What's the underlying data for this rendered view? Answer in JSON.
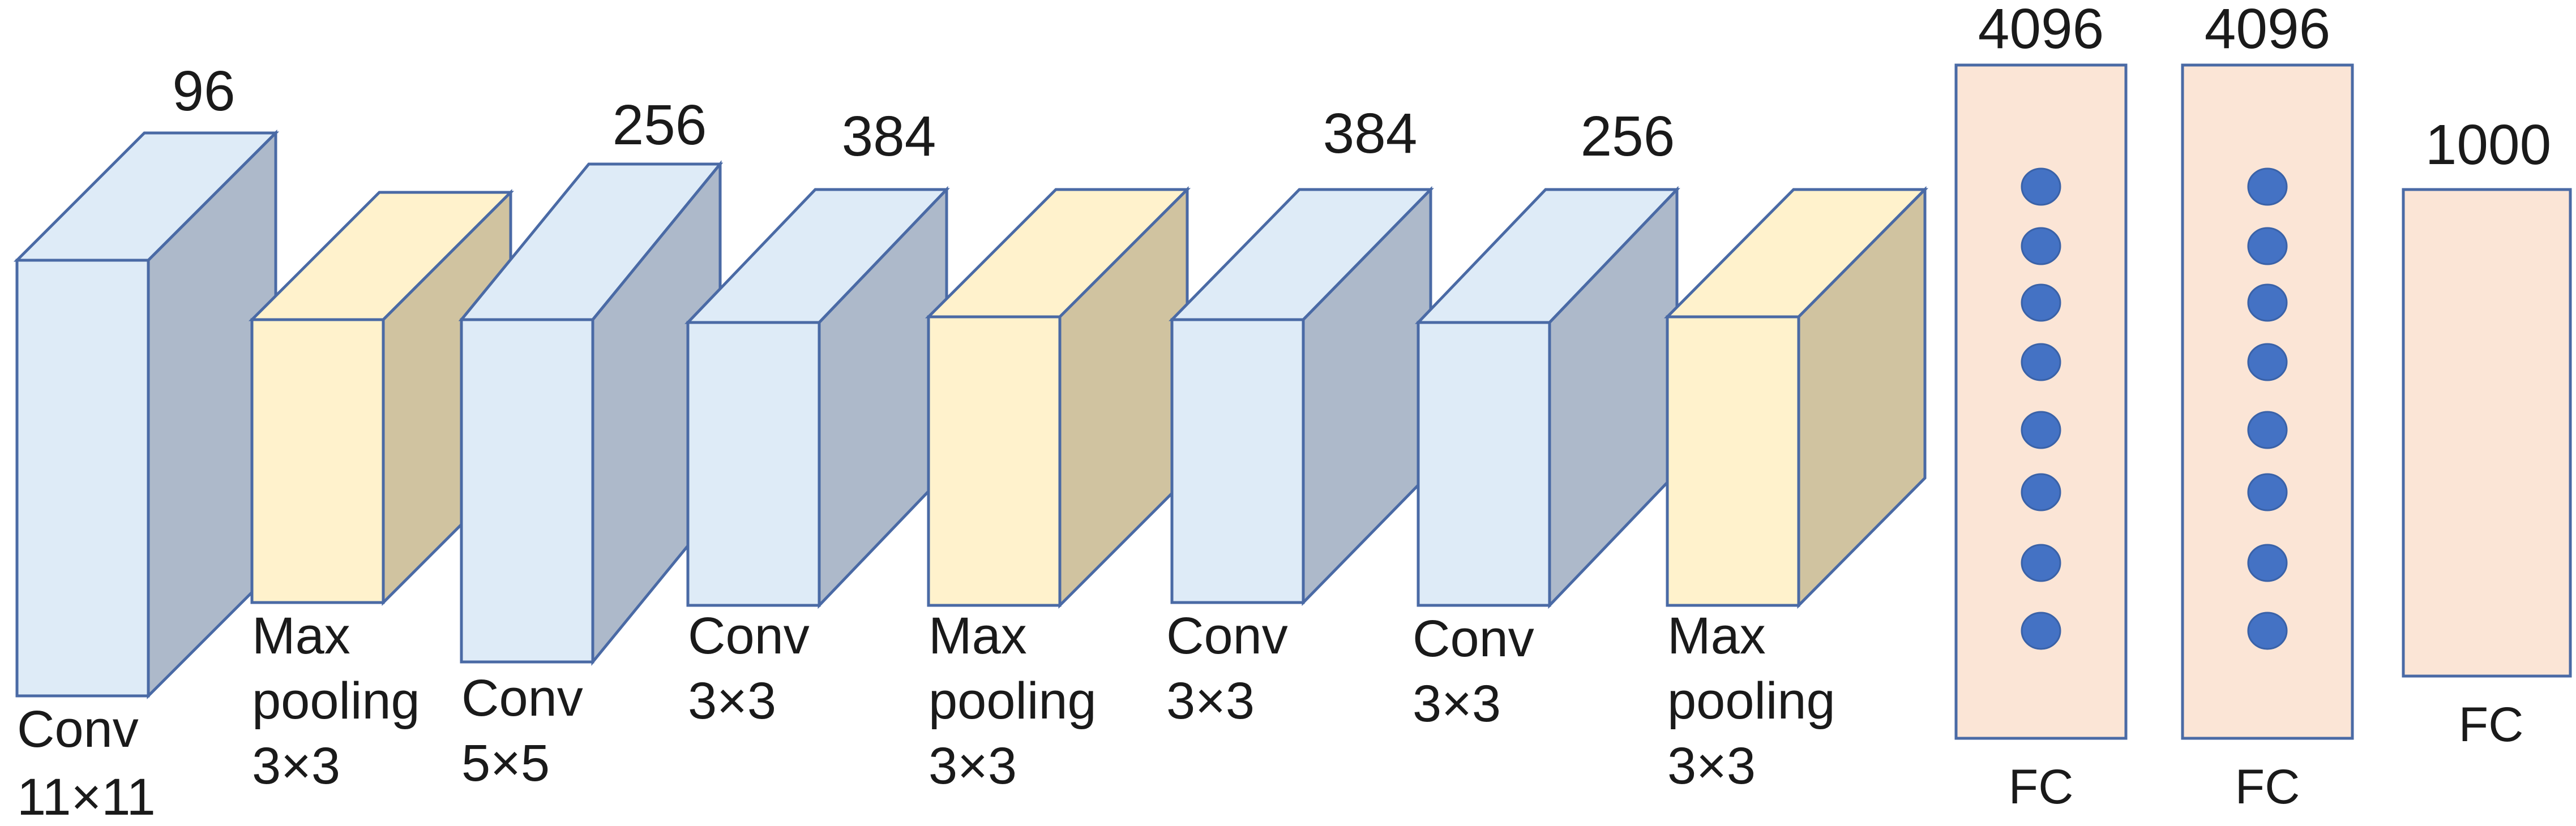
{
  "colors": {
    "conv_front": "#deebf7",
    "conv_top": "#deebf7",
    "conv_side": "#adb9ca",
    "pool_front": "#fff2cc",
    "pool_top": "#fff2cc",
    "pool_side": "#d0c3a0",
    "fc_fill": "#fbe5d6",
    "edge": "#4a6aa5",
    "neuron": "#4472c4"
  },
  "layers": [
    {
      "type": "conv",
      "count": "96",
      "label": [
        "Conv",
        "11×11"
      ]
    },
    {
      "type": "pool",
      "count": "",
      "label": [
        "Max",
        "pooling",
        "3×3"
      ]
    },
    {
      "type": "conv",
      "count": "256",
      "label": [
        "Conv",
        "5×5"
      ]
    },
    {
      "type": "conv",
      "count": "384",
      "label": [
        "Conv",
        "3×3"
      ]
    },
    {
      "type": "pool",
      "count": "",
      "label": [
        "Max",
        "pooling",
        "3×3"
      ]
    },
    {
      "type": "conv",
      "count": "384",
      "label": [
        "Conv",
        "3×3"
      ]
    },
    {
      "type": "conv",
      "count": "256",
      "label": [
        "Conv",
        "3×3"
      ]
    },
    {
      "type": "pool",
      "count": "",
      "label": [
        "Max",
        "pooling",
        "3×3"
      ]
    },
    {
      "type": "fc",
      "count": "4096",
      "label": [
        "FC"
      ],
      "neurons": 8
    },
    {
      "type": "fc",
      "count": "4096",
      "label": [
        "FC"
      ],
      "neurons": 8
    },
    {
      "type": "fc",
      "count": "1000",
      "label": [
        "FC"
      ],
      "neurons": 0
    }
  ]
}
